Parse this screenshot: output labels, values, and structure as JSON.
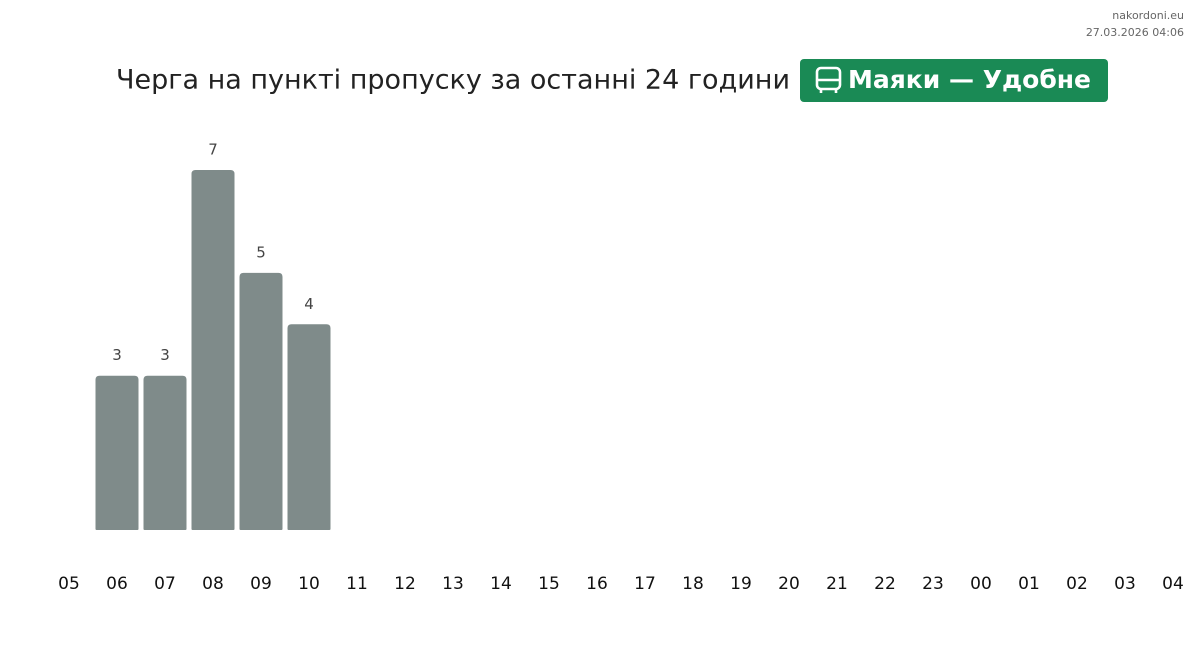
{
  "chart_data": {
    "type": "bar",
    "title": "Черга на пункті пропуску за останні 24 години",
    "badge": "Маяки — Удобне",
    "source": "nakordoni.eu",
    "timestamp": "27.03.2026 04:06",
    "categories": [
      "05",
      "06",
      "07",
      "08",
      "09",
      "10",
      "11",
      "12",
      "13",
      "14",
      "15",
      "16",
      "17",
      "18",
      "19",
      "20",
      "21",
      "22",
      "23",
      "00",
      "01",
      "02",
      "03",
      "04"
    ],
    "values": [
      null,
      3,
      3,
      7,
      5,
      4,
      null,
      null,
      null,
      null,
      null,
      null,
      null,
      null,
      null,
      null,
      null,
      null,
      null,
      null,
      null,
      null,
      null,
      null
    ],
    "color": "#7f8b8a",
    "ylim": [
      0,
      7
    ]
  }
}
